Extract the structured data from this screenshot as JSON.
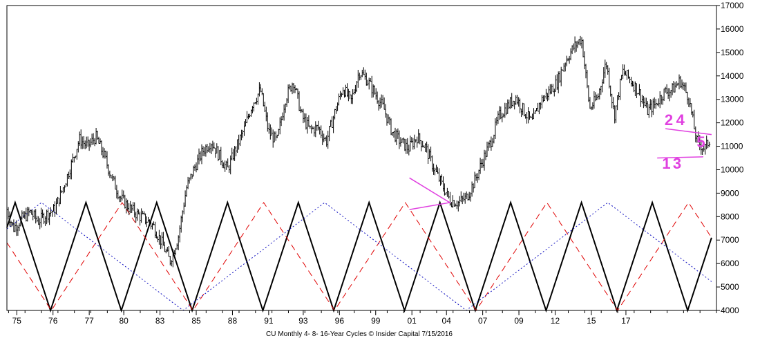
{
  "chart_data": {
    "type": "bar",
    "title": "",
    "caption": "CU Monthly 4- 8- 16-Year Cycles © Insider Capital 7/15/2016",
    "ylim": [
      4000,
      17000
    ],
    "y_ticks": [
      "4000",
      "5000",
      "6000",
      "7000",
      "8000",
      "9000",
      "10000",
      "11000",
      "12000",
      "13000",
      "14000",
      "15000",
      "16000",
      "17000"
    ],
    "xlim": [
      1973.9,
      2017.0
    ],
    "x_ticks": [
      {
        "year": 1974.5,
        "label": "75"
      },
      {
        "year": 1976.7,
        "label": "76"
      },
      {
        "year": 1978.9,
        "label": "77"
      },
      {
        "year": 1981.0,
        "label": "80"
      },
      {
        "year": 1983.2,
        "label": "83"
      },
      {
        "year": 1985.4,
        "label": "85"
      },
      {
        "year": 1987.6,
        "label": "88"
      },
      {
        "year": 1989.8,
        "label": "91"
      },
      {
        "year": 1991.9,
        "label": "93"
      },
      {
        "year": 1994.1,
        "label": "96"
      },
      {
        "year": 1996.3,
        "label": "99"
      },
      {
        "year": 1998.5,
        "label": "01"
      },
      {
        "year": 2000.6,
        "label": "04"
      },
      {
        "year": 2002.8,
        "label": "07"
      },
      {
        "year": 2005.0,
        "label": "09"
      },
      {
        "year": 2007.2,
        "label": "12"
      },
      {
        "year": 2009.4,
        "label": "15"
      },
      {
        "year": 2011.5,
        "label": "17"
      }
    ],
    "price_series": {
      "name": "CU Monthly",
      "x": [
        1973.9,
        1974.3,
        1974.8,
        1975.3,
        1975.8,
        1976.3,
        1976.8,
        1977.3,
        1977.8,
        1978.3,
        1978.8,
        1979.3,
        1979.8,
        1980.3,
        1980.8,
        1981.3,
        1981.8,
        1982.3,
        1982.8,
        1983.3,
        1983.8,
        1984.3,
        1984.8,
        1985.3,
        1985.8,
        1986.3,
        1986.8,
        1987.3,
        1987.8,
        1988.3,
        1988.8,
        1989.3,
        1989.8,
        1990.3,
        1990.8,
        1991.3,
        1991.8,
        1992.3,
        1992.8,
        1993.3,
        1993.8,
        1994.3,
        1994.8,
        1995.3,
        1995.8,
        1996.3,
        1996.8,
        1997.3,
        1997.8,
        1998.3,
        1998.8,
        1999.3,
        1999.8,
        2000.3,
        2000.8,
        2001.3,
        2001.8,
        2002.3,
        2002.8,
        2003.3,
        2003.8,
        2004.3,
        2004.8,
        2005.3,
        2005.8,
        2006.3,
        2006.8,
        2007.3,
        2007.8,
        2008.3,
        2008.8,
        2009.3,
        2009.8,
        2010.3,
        2010.8,
        2011.3,
        2011.8,
        2012.3,
        2012.8,
        2013.3,
        2013.8,
        2014.3,
        2014.8,
        2015.3,
        2015.8,
        2016.3,
        2016.6
      ],
      "values": [
        8300,
        7500,
        7900,
        8200,
        7800,
        8100,
        8300,
        9200,
        10200,
        11300,
        11000,
        11400,
        10600,
        9600,
        8800,
        8400,
        8100,
        7900,
        7600,
        6900,
        6100,
        7100,
        9200,
        10100,
        10800,
        11200,
        10600,
        10000,
        10900,
        11700,
        12800,
        13400,
        11600,
        11200,
        13000,
        13800,
        12300,
        11700,
        11800,
        11200,
        12400,
        13500,
        12900,
        14200,
        13800,
        13200,
        12600,
        11600,
        11200,
        10900,
        11400,
        11000,
        10100,
        9400,
        8700,
        8600,
        8800,
        9500,
        10400,
        11200,
        12300,
        12700,
        13100,
        12500,
        12000,
        12900,
        13300,
        13700,
        14600,
        15200,
        15600,
        12600,
        13100,
        14600,
        12300,
        14200,
        13800,
        13300,
        12500,
        12800,
        13300,
        13400,
        13800,
        13100,
        11200,
        10900,
        11300
      ]
    },
    "cycle_series": [
      {
        "name": "4-Year Cycle",
        "color": "#000000",
        "style": "solid",
        "period": 4.3,
        "phase": 1974.4
      },
      {
        "name": "8-Year Cycle",
        "color": "#e00000",
        "style": "dashed",
        "period": 8.6,
        "phase": 1980.9
      },
      {
        "name": "16-Year Cycle",
        "color": "#1010c0",
        "style": "dotted",
        "period": 17.2,
        "phase": 1976.0
      }
    ],
    "cycle_range": [
      4000,
      8600
    ],
    "annotations": [
      {
        "text": "2",
        "color": "#e040e0",
        "x": 2013.85,
        "y": 11900
      },
      {
        "text": "4",
        "color": "#e040e0",
        "x": 2014.55,
        "y": 11900
      },
      {
        "text": "5",
        "color": "#e040e0",
        "x": 2015.8,
        "y": 10950
      },
      {
        "text": "1",
        "color": "#e040e0",
        "x": 2013.7,
        "y": 10050
      },
      {
        "text": "3",
        "color": "#e040e0",
        "x": 2014.35,
        "y": 10050
      }
    ],
    "trendlines": [
      {
        "color": "#e040e0",
        "points": [
          [
            1998.35,
            9650
          ],
          [
            2000.8,
            8600
          ],
          [
            1998.35,
            8300
          ]
        ]
      },
      {
        "color": "#e040e0",
        "points": [
          [
            2013.9,
            11750
          ],
          [
            2016.7,
            11500
          ]
        ]
      },
      {
        "color": "#e040e0",
        "points": [
          [
            2013.4,
            10500
          ],
          [
            2016.2,
            10550
          ]
        ]
      }
    ],
    "grid": false,
    "legend": "none"
  }
}
